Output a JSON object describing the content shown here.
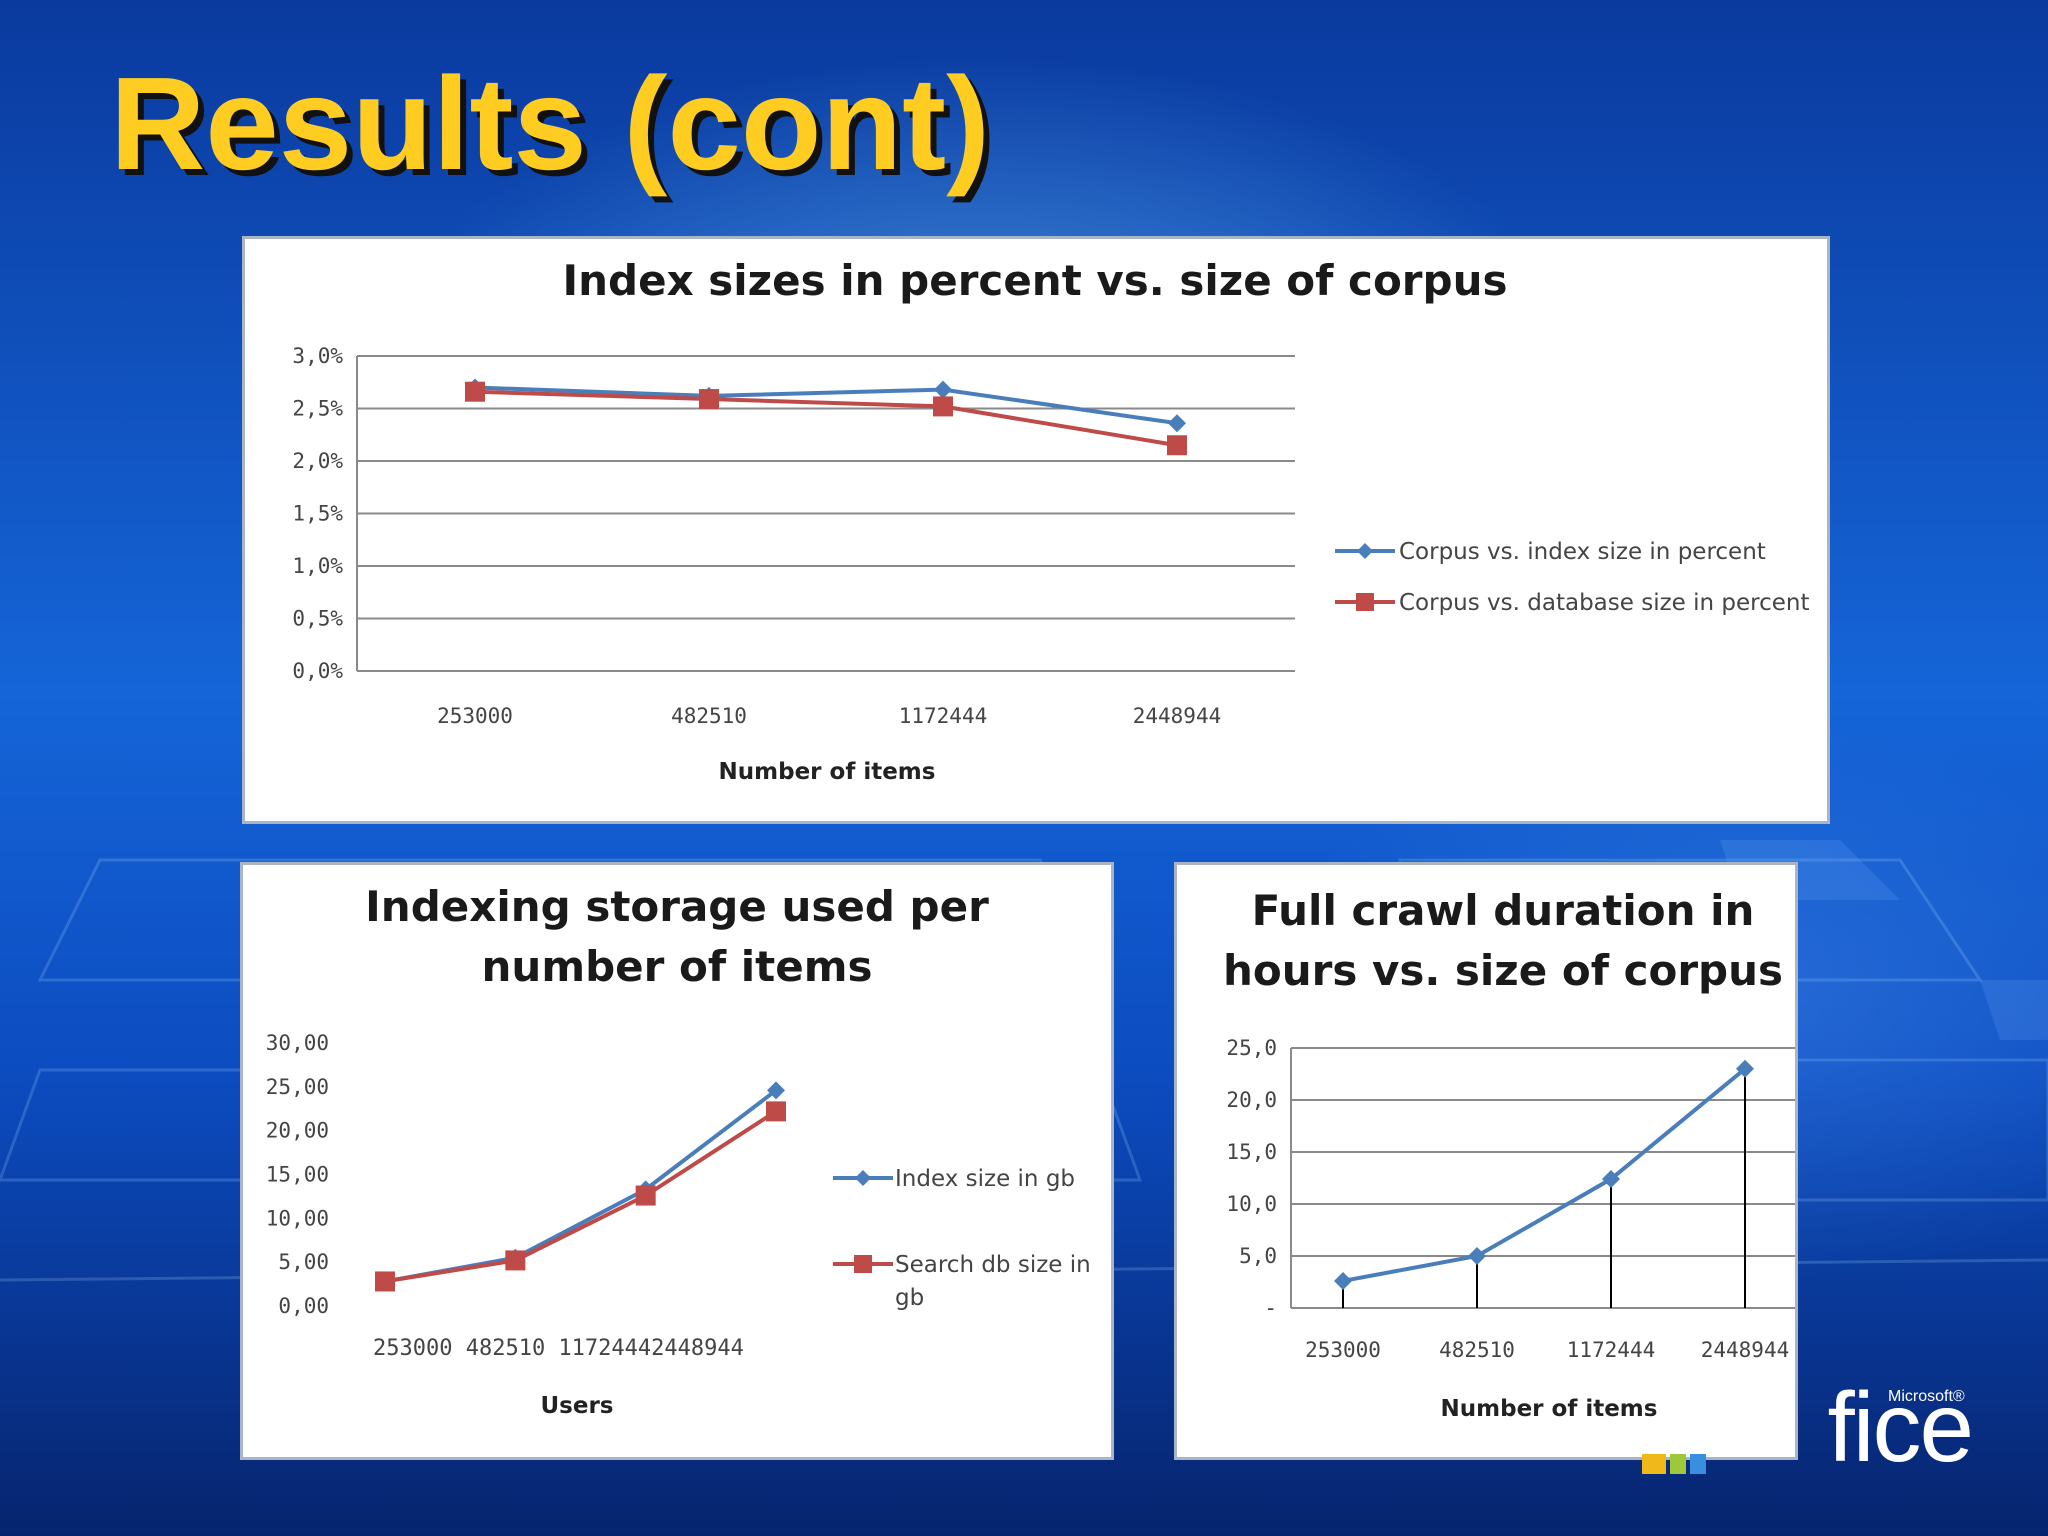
{
  "slide": {
    "title": "Results (cont)"
  },
  "branding": {
    "word": "Office",
    "visible_fragment": "fice",
    "superscript": "Microsoft®"
  },
  "colors": {
    "series_blue": "#4a7ebb",
    "series_red": "#be4b48",
    "title_yellow": "#ffcc22"
  },
  "chart_data": [
    {
      "id": "index-sizes",
      "type": "line",
      "title": "Index sizes in percent vs. size of corpus",
      "xlabel": "Number of items",
      "ylabel": "",
      "categories": [
        "253000",
        "482510",
        "1172444",
        "2448944"
      ],
      "ylim": [
        0,
        3.0
      ],
      "yticks": [
        "0,0%",
        "0,5%",
        "1,0%",
        "1,5%",
        "2,0%",
        "2,5%",
        "3,0%"
      ],
      "series": [
        {
          "name": "Corpus vs. index size in percent",
          "color": "#4a7ebb",
          "marker": "diamond",
          "values": [
            2.7,
            2.62,
            2.68,
            2.36
          ]
        },
        {
          "name": "Corpus vs. database size in percent",
          "color": "#be4b48",
          "marker": "square",
          "values": [
            2.66,
            2.59,
            2.52,
            2.15
          ]
        }
      ],
      "legend": "right"
    },
    {
      "id": "indexing-storage",
      "type": "line",
      "title": "Indexing storage used per number of items",
      "title_lines": [
        "Indexing storage used per",
        "number of items"
      ],
      "xlabel": "Users",
      "ylabel": "",
      "categories": [
        "253000",
        "482510",
        "1172444",
        "2448944"
      ],
      "xtick_text": "253000 482510 11724442448944",
      "ylim": [
        0,
        30
      ],
      "yticks": [
        "0,00",
        "5,00",
        "10,00",
        "15,00",
        "20,00",
        "25,00",
        "30,00"
      ],
      "series": [
        {
          "name": "Index size  in gb",
          "color": "#4a7ebb",
          "marker": "diamond",
          "values": [
            2.8,
            5.5,
            13.3,
            24.6
          ]
        },
        {
          "name": "Search db size in gb",
          "legend_lines": [
            "Search db size in",
            "gb"
          ],
          "color": "#be4b48",
          "marker": "square",
          "values": [
            2.8,
            5.2,
            12.6,
            22.2
          ]
        }
      ],
      "legend": "right"
    },
    {
      "id": "full-crawl-duration",
      "type": "line",
      "title": "Full crawl duration in hours vs. size of corpus",
      "title_lines": [
        "Full crawl duration in",
        "hours vs. size of corpus"
      ],
      "xlabel": "Number of items",
      "ylabel": "",
      "categories": [
        "253000",
        "482510",
        "1172444",
        "2448944"
      ],
      "ylim": [
        0,
        25
      ],
      "yticks": [
        "-",
        "5,0",
        "10,0",
        "15,0",
        "20,0",
        "25,0"
      ],
      "series": [
        {
          "name": "Full crawl duration",
          "color": "#4a7ebb",
          "marker": "diamond",
          "values": [
            2.6,
            5.0,
            12.4,
            23.0
          ]
        }
      ],
      "legend": "none"
    }
  ]
}
